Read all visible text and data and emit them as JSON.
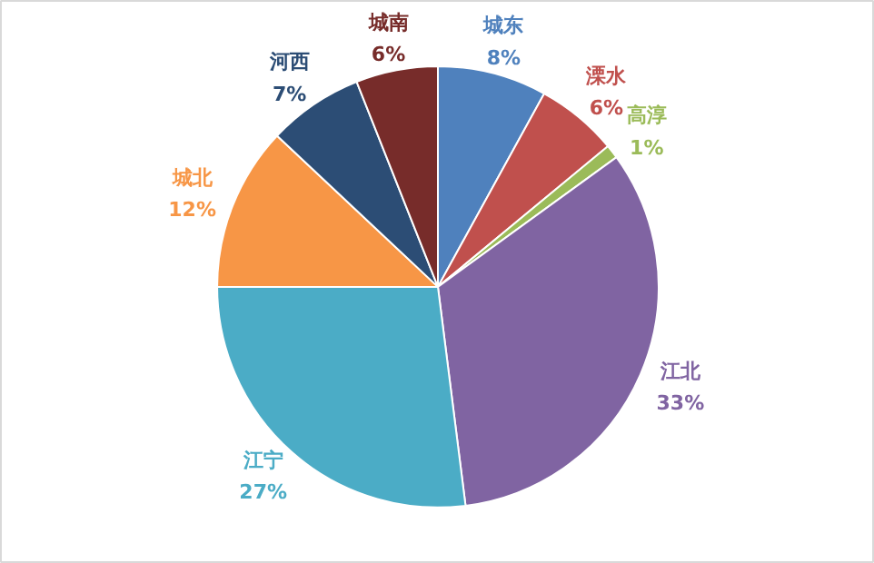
{
  "chart_data": {
    "type": "pie",
    "categories": [
      "城东",
      "溧水",
      "高淳",
      "江北",
      "江宁",
      "城北",
      "河西",
      "城南"
    ],
    "values": [
      8,
      6,
      1,
      33,
      27,
      12,
      7,
      6
    ],
    "value_labels": [
      "8%",
      "6%",
      "1%",
      "33%",
      "27%",
      "12%",
      "7%",
      "6%"
    ],
    "colors": [
      "#4f81bd",
      "#c0504d",
      "#9bbb59",
      "#8064a2",
      "#4bacc6",
      "#f79646",
      "#2c4d75",
      "#772c2a"
    ],
    "legend": false
  }
}
